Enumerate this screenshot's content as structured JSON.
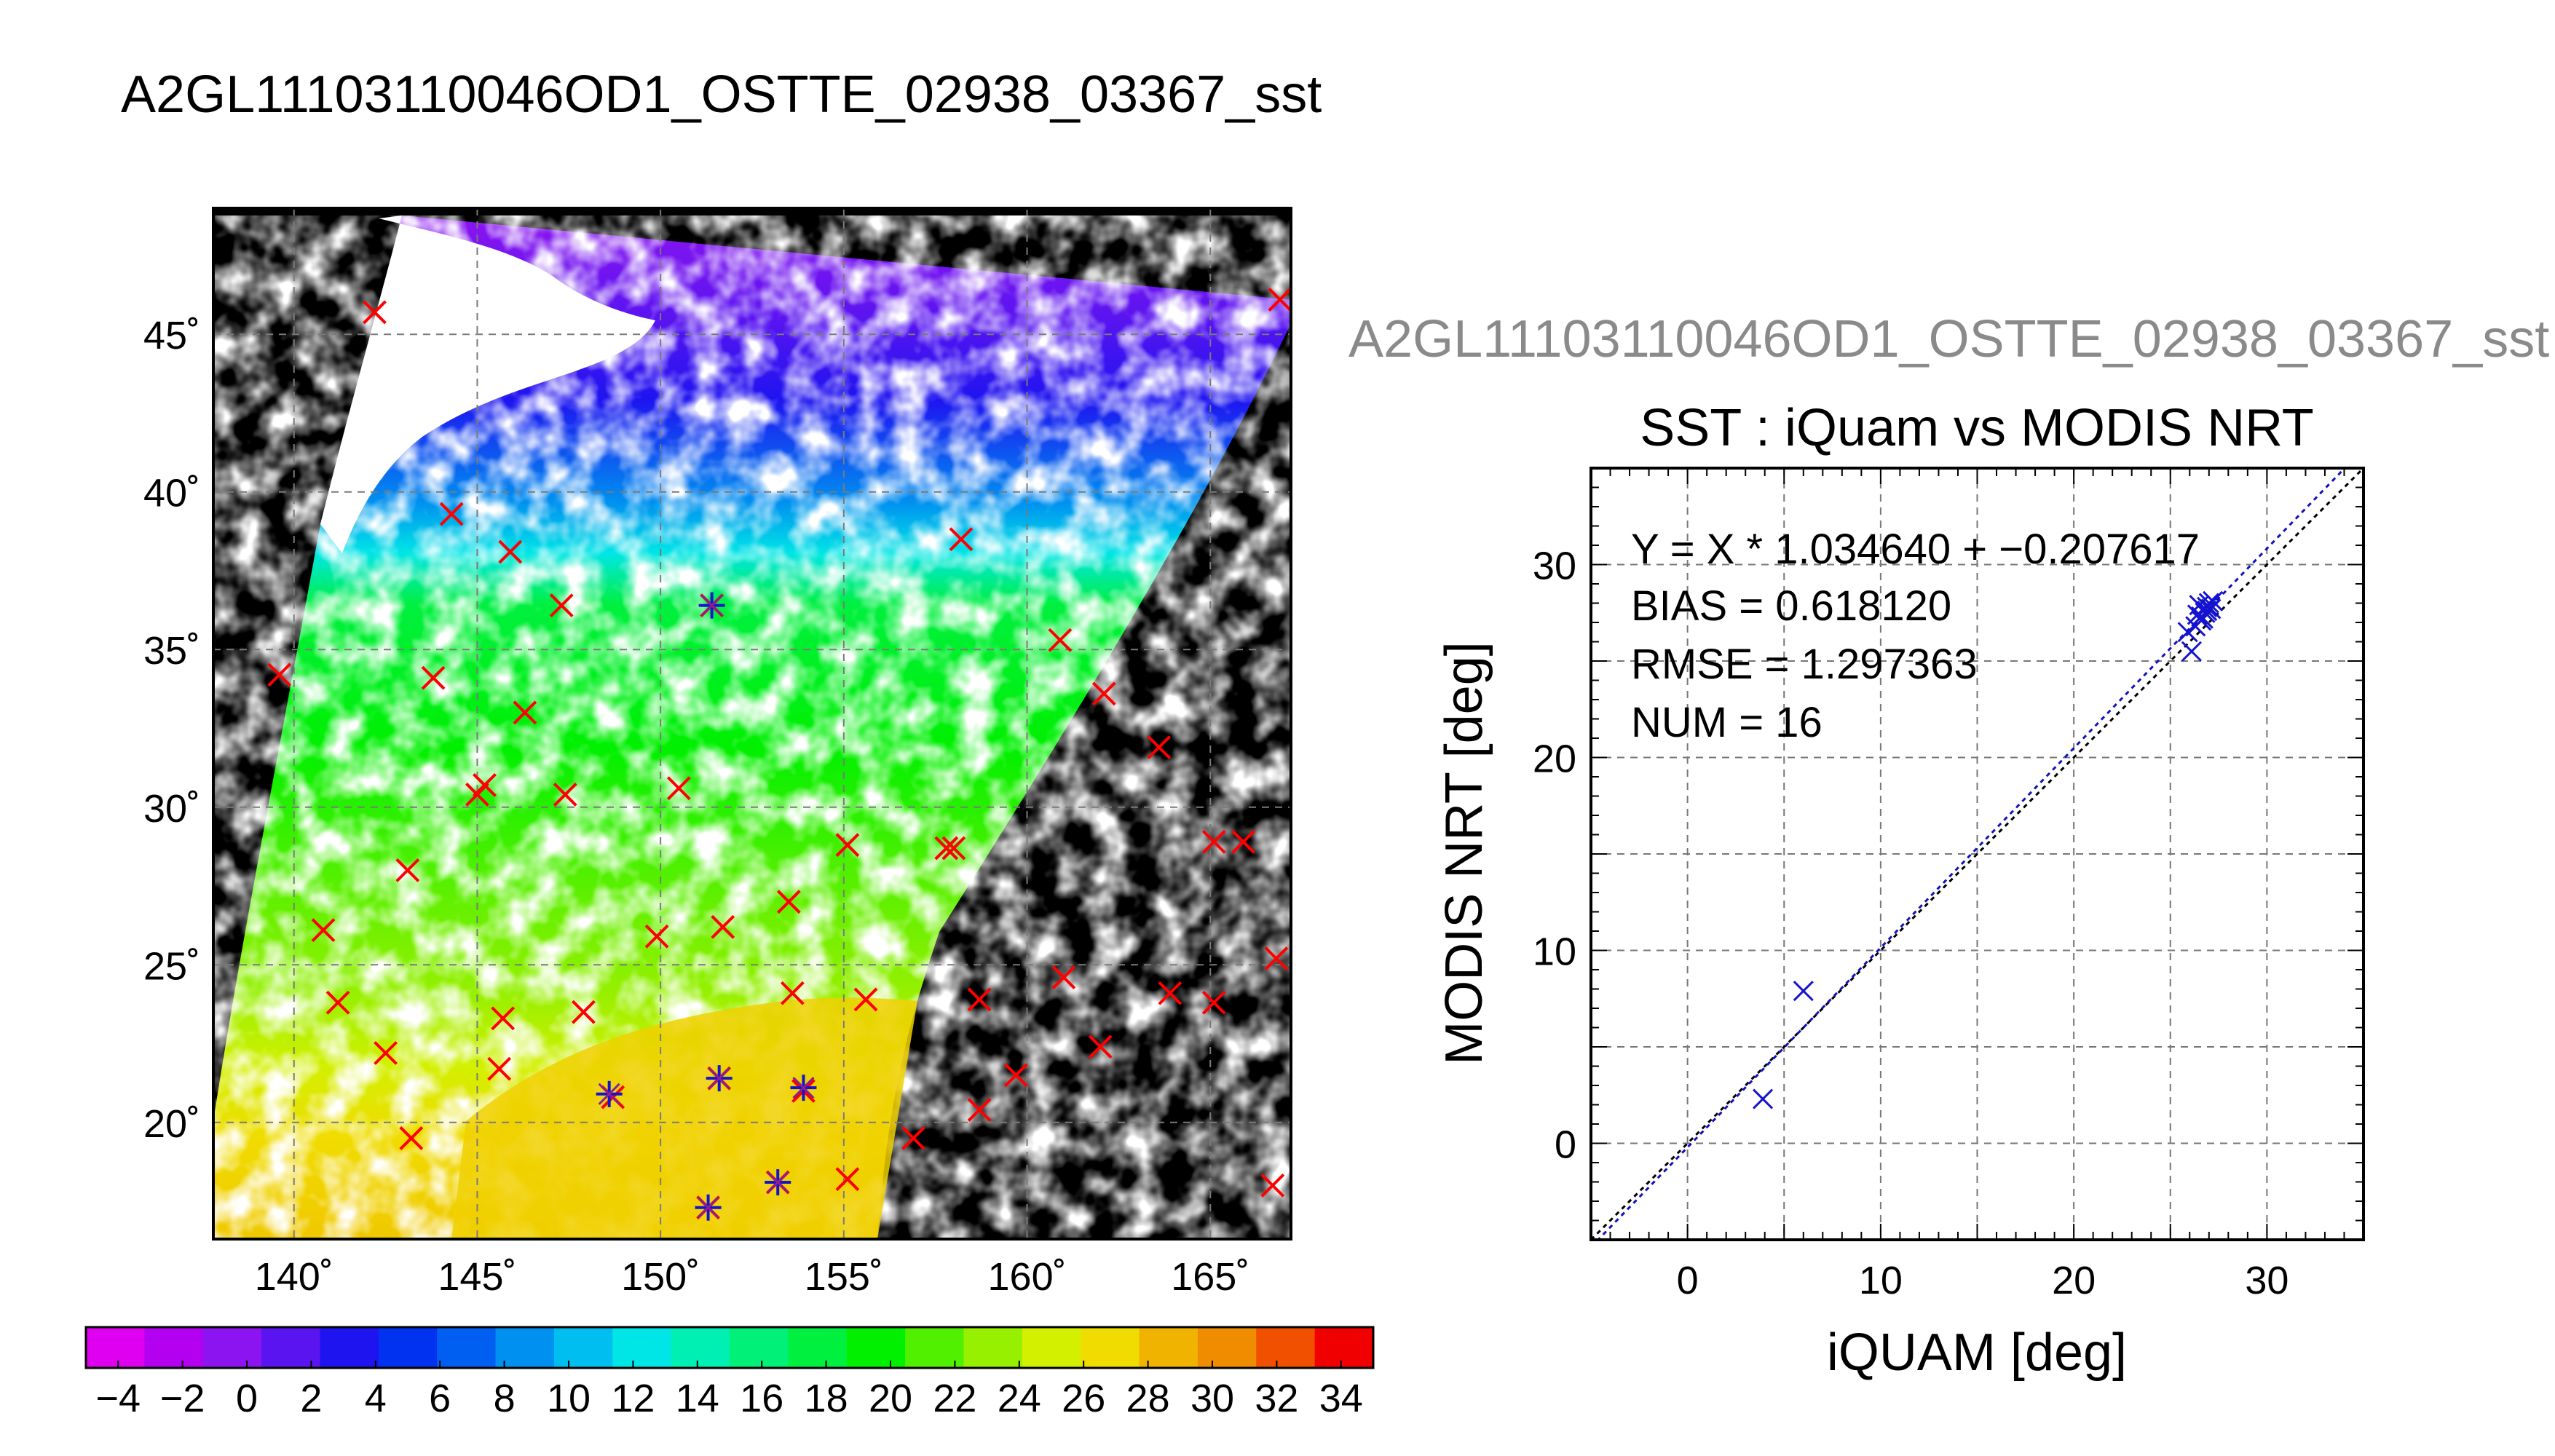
{
  "header": {
    "title": "A2GL11103110046OD1_OSTTE_02938_03367_sst",
    "scatter_caption": "A2GL11103110046OD1_OSTTE_02938_03367_sst"
  },
  "colors": {
    "match_marker": "#ff0000",
    "scatter_marker": "#1414d0",
    "fit_line": "#1010c0",
    "map_background": "#000000",
    "land_cloud": "#ffffff"
  },
  "chart_data": [
    {
      "type": "heatmap",
      "panel": "sst-map",
      "lon_ticks": [
        140,
        145,
        150,
        155,
        160,
        165
      ],
      "lat_ticks": [
        20,
        25,
        30,
        35,
        40,
        45
      ],
      "lon_tick_labels": [
        "140˚",
        "145˚",
        "150˚",
        "155˚",
        "160˚",
        "165˚"
      ],
      "lat_tick_labels": [
        "20˚",
        "25˚",
        "30˚",
        "35˚",
        "40˚",
        "45˚"
      ],
      "xlim": [
        137.8,
        167.2
      ],
      "ylim": [
        16.3,
        49.0
      ],
      "grid": true,
      "colorbar": {
        "vmin": -5,
        "vmax": 35,
        "tick_values": [
          -4,
          -2,
          0,
          2,
          4,
          6,
          8,
          10,
          12,
          14,
          16,
          18,
          20,
          22,
          24,
          26,
          28,
          30,
          32,
          34
        ],
        "tick_labels": [
          "−4",
          "−2",
          "0",
          "2",
          "4",
          "6",
          "8",
          "10",
          "12",
          "14",
          "16",
          "18",
          "20",
          "22",
          "24",
          "26",
          "28",
          "30",
          "32",
          "34"
        ],
        "colors": [
          "#e000f0",
          "#b400f0",
          "#8c14f0",
          "#5a14f0",
          "#1e14f0",
          "#0032f0",
          "#005ff0",
          "#0090f0",
          "#00bef0",
          "#00e6e6",
          "#00f0b4",
          "#00f078",
          "#00f040",
          "#00f000",
          "#50f000",
          "#96f000",
          "#d2f000",
          "#f0dc00",
          "#f0b400",
          "#f08c00",
          "#f05000",
          "#f00000"
        ]
      },
      "match_points_lonlat": [
        [
          142.2,
          45.7
        ],
        [
          144.3,
          39.3
        ],
        [
          145.9,
          38.1
        ],
        [
          147.3,
          36.4
        ],
        [
          151.4,
          36.4
        ],
        [
          158.2,
          38.5
        ],
        [
          139.6,
          34.2
        ],
        [
          143.8,
          34.1
        ],
        [
          146.3,
          33.0
        ],
        [
          160.9,
          35.3
        ],
        [
          162.1,
          33.6
        ],
        [
          163.6,
          31.9
        ],
        [
          145.2,
          30.7
        ],
        [
          147.4,
          30.4
        ],
        [
          150.5,
          30.6
        ],
        [
          145.0,
          30.4
        ],
        [
          143.1,
          28.0
        ],
        [
          155.1,
          28.8
        ],
        [
          157.8,
          28.7
        ],
        [
          158.0,
          28.7
        ],
        [
          165.1,
          28.9
        ],
        [
          165.9,
          28.9
        ],
        [
          140.8,
          26.1
        ],
        [
          149.9,
          25.9
        ],
        [
          151.7,
          26.2
        ],
        [
          153.5,
          27.0
        ],
        [
          141.2,
          23.8
        ],
        [
          142.5,
          22.2
        ],
        [
          145.7,
          23.3
        ],
        [
          147.9,
          23.5
        ],
        [
          153.6,
          24.1
        ],
        [
          155.6,
          23.9
        ],
        [
          158.7,
          23.9
        ],
        [
          161.0,
          24.6
        ],
        [
          163.9,
          24.1
        ],
        [
          165.1,
          23.8
        ],
        [
          166.8,
          25.2
        ],
        [
          145.6,
          21.7
        ],
        [
          148.7,
          20.8
        ],
        [
          151.6,
          21.4
        ],
        [
          153.9,
          21.0
        ],
        [
          162.0,
          22.4
        ],
        [
          159.7,
          21.5
        ],
        [
          143.2,
          19.5
        ],
        [
          153.2,
          18.1
        ],
        [
          155.1,
          18.2
        ],
        [
          156.9,
          19.5
        ],
        [
          158.7,
          20.4
        ],
        [
          151.3,
          17.3
        ],
        [
          166.7,
          18.0
        ],
        [
          166.9,
          46.1
        ]
      ],
      "blue_star_points_lonlat": [
        [
          148.6,
          20.9
        ],
        [
          151.6,
          21.4
        ],
        [
          153.9,
          21.1
        ],
        [
          151.3,
          17.3
        ],
        [
          153.2,
          18.1
        ],
        [
          151.4,
          36.4
        ]
      ]
    },
    {
      "type": "scatter",
      "panel": "sst-scatter",
      "title": "SST : iQuam vs MODIS NRT",
      "xlabel": "iQUAM [deg]",
      "ylabel": "MODIS NRT [deg]",
      "xlim": [
        -5,
        35
      ],
      "ylim": [
        -5,
        35
      ],
      "x_ticks": [
        0,
        10,
        20,
        30
      ],
      "y_ticks": [
        0,
        10,
        20,
        30
      ],
      "x_tick_labels": [
        "0",
        "10",
        "20",
        "30"
      ],
      "y_tick_labels": [
        "0",
        "10",
        "20",
        "30"
      ],
      "grid": true,
      "stats": {
        "equation": "Y = X * 1.034640 + −0.207617",
        "bias": "BIAS = 0.618120",
        "rmse": "RMSE = 1.297363",
        "num": "NUM = 16"
      },
      "fit": {
        "slope": 1.03464,
        "intercept": -0.207617
      },
      "x": [
        3.9,
        6.0,
        25.9,
        26.1,
        26.4,
        26.6,
        26.5,
        26.8,
        26.9,
        27.0,
        27.1,
        26.7,
        26.6,
        26.3,
        27.2,
        26.9
      ],
      "y": [
        2.3,
        7.9,
        26.5,
        25.5,
        27.4,
        27.1,
        27.9,
        27.5,
        27.8,
        28.0,
        27.7,
        27.2,
        27.3,
        26.8,
        28.1,
        27.6
      ]
    }
  ]
}
